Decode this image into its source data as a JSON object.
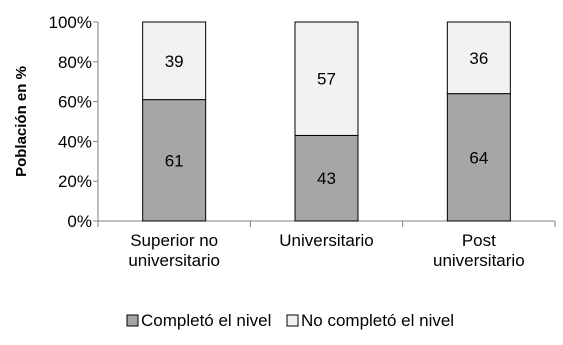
{
  "chart_data": {
    "type": "bar",
    "stacked": true,
    "categories": [
      [
        "Superior no",
        "universitario"
      ],
      [
        "Universitario"
      ],
      [
        "Post",
        "universitario"
      ]
    ],
    "series": [
      {
        "name": "Completó el nivel",
        "values": [
          61,
          43,
          64
        ],
        "color": "#a6a6a6"
      },
      {
        "name": "No completó el nivel",
        "values": [
          39,
          57,
          36
        ],
        "color": "#f2f2f2"
      }
    ],
    "ylabel": "Población en %",
    "ylim": [
      0,
      100
    ],
    "yticks": [
      "0%",
      "20%",
      "40%",
      "60%",
      "80%",
      "100%"
    ],
    "grid": false,
    "legend_position": "bottom"
  }
}
